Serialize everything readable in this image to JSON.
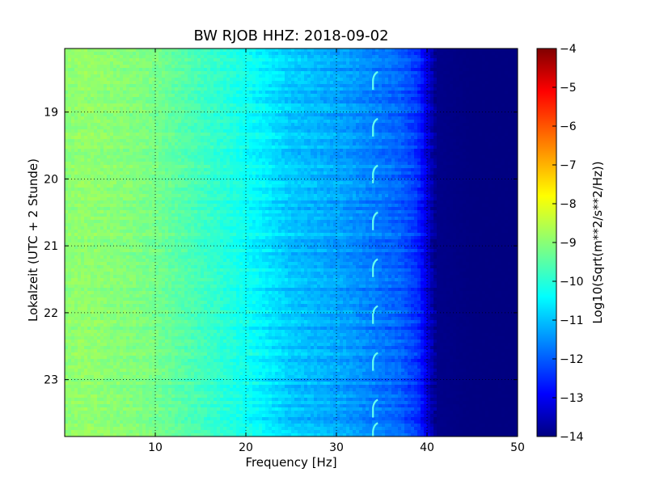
{
  "chart_data": {
    "type": "heatmap",
    "title": "BW RJOB HHZ: 2018-09-02",
    "xlabel": "Frequency [Hz]",
    "ylabel": "Lokalzeit (UTC + 2 Stunde)",
    "xlim": [
      0,
      50
    ],
    "ylim": [
      18.05,
      23.85
    ],
    "y_inverted": true,
    "x_ticks": [
      10,
      20,
      30,
      40,
      50
    ],
    "y_ticks": [
      19,
      20,
      21,
      22,
      23
    ],
    "grid": true,
    "colorbar": {
      "label": "Log10(Sqrt(m**2/s**2/Hz))",
      "range": [
        -14,
        -4
      ],
      "ticks": [
        -4,
        -5,
        -6,
        -7,
        -8,
        -9,
        -10,
        -11,
        -12,
        -13,
        -14
      ],
      "colormap": "jet"
    },
    "spectral_profile": {
      "frequency_hz": [
        0,
        2,
        5,
        8,
        10,
        13,
        16,
        19,
        22,
        25,
        28,
        31,
        34,
        37,
        39,
        41,
        45,
        50
      ],
      "log10_amplitude": [
        -8.9,
        -8.8,
        -8.9,
        -9.0,
        -9.1,
        -9.4,
        -9.7,
        -10.0,
        -10.4,
        -10.8,
        -11.0,
        -11.2,
        -11.5,
        -11.8,
        -12.3,
        -13.9,
        -14.0,
        -14.0
      ]
    },
    "recurring_feature": {
      "frequency_hz": 34.3,
      "onset_hours": [
        18.4,
        19.1,
        19.8,
        20.5,
        21.2,
        21.9,
        22.6,
        23.3,
        23.65
      ]
    }
  }
}
